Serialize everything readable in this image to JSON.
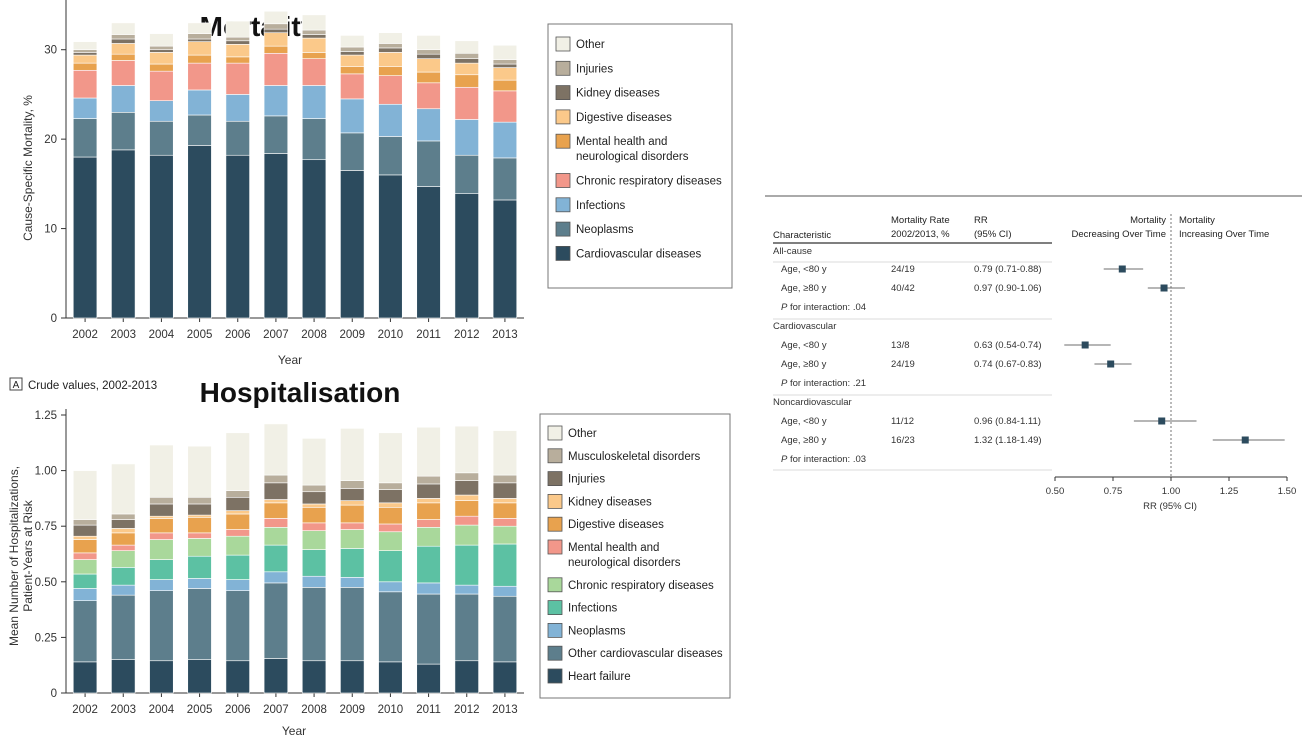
{
  "chart_data": [
    {
      "type": "bar",
      "stacked": true,
      "title": "Mortality",
      "xlabel": "Year",
      "ylabel": "Cause-Specific Mortality, %",
      "ylim": [
        0,
        35
      ],
      "yticks": [
        0,
        10,
        20,
        30
      ],
      "categories": [
        "2002",
        "2003",
        "2004",
        "2005",
        "2006",
        "2007",
        "2008",
        "2009",
        "2010",
        "2011",
        "2012",
        "2013"
      ],
      "legend_position": "right",
      "series": [
        {
          "name": "Cardiovascular diseases",
          "color": "#2c4b5e",
          "values": [
            18.0,
            18.8,
            18.2,
            19.3,
            18.2,
            18.4,
            17.7,
            16.5,
            16.0,
            14.7,
            13.9,
            13.2
          ]
        },
        {
          "name": "Neoplasms",
          "color": "#5d7e8c",
          "values": [
            4.3,
            4.2,
            3.8,
            3.4,
            3.8,
            4.2,
            4.6,
            4.2,
            4.3,
            5.1,
            4.3,
            4.7
          ]
        },
        {
          "name": "Infections",
          "color": "#82b3d6",
          "values": [
            2.3,
            3.0,
            2.3,
            2.8,
            3.0,
            3.4,
            3.7,
            3.8,
            3.6,
            3.6,
            4.0,
            4.0
          ]
        },
        {
          "name": "Chronic respiratory diseases",
          "color": "#f2978a",
          "values": [
            3.1,
            2.8,
            3.3,
            3.0,
            3.5,
            3.6,
            3.0,
            2.8,
            3.2,
            2.9,
            3.6,
            3.5
          ]
        },
        {
          "name": "Mental health and neurological disorders",
          "color": "#e8a24e",
          "values": [
            0.8,
            0.7,
            0.8,
            0.9,
            0.7,
            0.8,
            0.7,
            0.8,
            1.0,
            1.2,
            1.4,
            1.2
          ]
        },
        {
          "name": "Digestive diseases",
          "color": "#fbc98a",
          "values": [
            0.9,
            1.2,
            1.3,
            1.5,
            1.4,
            1.5,
            1.6,
            1.3,
            1.6,
            1.5,
            1.3,
            1.4
          ]
        },
        {
          "name": "Kidney diseases",
          "color": "#7d7264",
          "values": [
            0.3,
            0.5,
            0.3,
            0.3,
            0.4,
            0.4,
            0.4,
            0.4,
            0.5,
            0.5,
            0.5,
            0.4
          ]
        },
        {
          "name": "Injuries",
          "color": "#b8ae9c",
          "values": [
            0.3,
            0.5,
            0.4,
            0.6,
            0.4,
            0.6,
            0.5,
            0.5,
            0.5,
            0.5,
            0.6,
            0.5
          ]
        },
        {
          "name": "Other",
          "color": "#f1f0e6",
          "values": [
            0.9,
            1.3,
            1.4,
            1.2,
            1.8,
            1.4,
            1.7,
            1.3,
            1.2,
            1.6,
            1.4,
            1.6
          ]
        }
      ]
    },
    {
      "type": "bar",
      "stacked": true,
      "title": "Hospitalisation",
      "panel_label": "A",
      "panel_caption": "Crude values, 2002-2013",
      "xlabel": "Year",
      "ylabel_lines": [
        "Mean Number of Hospitalizations,",
        "Patient-Years at Risk"
      ],
      "ylim": [
        0,
        1.25
      ],
      "yticks": [
        0,
        0.25,
        0.5,
        0.75,
        1.0,
        1.25
      ],
      "ytick_labels": [
        "0",
        "0.25",
        "0.50",
        "0.75",
        "1.00",
        "1.25"
      ],
      "categories": [
        "2002",
        "2003",
        "2004",
        "2005",
        "2006",
        "2007",
        "2008",
        "2009",
        "2010",
        "2011",
        "2012",
        "2013"
      ],
      "legend_position": "right",
      "series": [
        {
          "name": "Heart failure",
          "color": "#2c4b5e",
          "values": [
            0.14,
            0.15,
            0.145,
            0.15,
            0.145,
            0.155,
            0.145,
            0.145,
            0.14,
            0.13,
            0.145,
            0.14
          ]
        },
        {
          "name": "Other cardiovascular diseases",
          "color": "#5d7e8c",
          "values": [
            0.275,
            0.29,
            0.315,
            0.32,
            0.315,
            0.34,
            0.33,
            0.33,
            0.315,
            0.315,
            0.3,
            0.295
          ]
        },
        {
          "name": "Neoplasms",
          "color": "#82b3d6",
          "values": [
            0.055,
            0.045,
            0.05,
            0.045,
            0.05,
            0.05,
            0.05,
            0.045,
            0.045,
            0.05,
            0.04,
            0.045
          ]
        },
        {
          "name": "Infections",
          "color": "#5cc1a3",
          "values": [
            0.065,
            0.08,
            0.09,
            0.1,
            0.11,
            0.12,
            0.12,
            0.13,
            0.14,
            0.165,
            0.18,
            0.19
          ]
        },
        {
          "name": "Chronic respiratory diseases",
          "color": "#a9d89b",
          "values": [
            0.065,
            0.075,
            0.09,
            0.08,
            0.085,
            0.08,
            0.085,
            0.085,
            0.085,
            0.085,
            0.09,
            0.08
          ]
        },
        {
          "name": "Mental health and neurological disorders",
          "color": "#f2978a",
          "values": [
            0.03,
            0.025,
            0.03,
            0.025,
            0.03,
            0.04,
            0.035,
            0.03,
            0.035,
            0.035,
            0.04,
            0.035
          ]
        },
        {
          "name": "Digestive diseases",
          "color": "#e8a24e",
          "values": [
            0.06,
            0.055,
            0.065,
            0.07,
            0.07,
            0.07,
            0.07,
            0.08,
            0.075,
            0.075,
            0.07,
            0.07
          ]
        },
        {
          "name": "Kidney diseases",
          "color": "#fbc98a",
          "values": [
            0.015,
            0.02,
            0.01,
            0.01,
            0.015,
            0.015,
            0.015,
            0.02,
            0.02,
            0.02,
            0.025,
            0.02
          ]
        },
        {
          "name": "Injuries",
          "color": "#7d7264",
          "values": [
            0.05,
            0.04,
            0.055,
            0.05,
            0.06,
            0.075,
            0.055,
            0.055,
            0.06,
            0.065,
            0.065,
            0.07
          ]
        },
        {
          "name": "Musculoskeletal disorders",
          "color": "#b8ae9c",
          "values": [
            0.025,
            0.025,
            0.03,
            0.03,
            0.03,
            0.035,
            0.03,
            0.035,
            0.03,
            0.035,
            0.035,
            0.035
          ]
        },
        {
          "name": "Other",
          "color": "#f1f0e6",
          "values": [
            0.22,
            0.225,
            0.235,
            0.23,
            0.26,
            0.23,
            0.21,
            0.235,
            0.225,
            0.22,
            0.21,
            0.2
          ]
        }
      ]
    },
    {
      "type": "forest",
      "headers": {
        "characteristic": "Characteristic",
        "rate_line1": "Mortality Rate",
        "rate_line2": "2002/2013, %",
        "rr_line1": "RR",
        "rr_line2": "(95% CI)",
        "left_line1": "Mortality",
        "left_line2": "Decreasing Over Time",
        "right_line1": "Mortality",
        "right_line2": "Increasing Over Time"
      },
      "xlabel": "RR (95% CI)",
      "xlim": [
        0.5,
        1.5
      ],
      "xticks": [
        0.5,
        0.75,
        1.0,
        1.25,
        1.5
      ],
      "xtick_labels": [
        "0.50",
        "0.75",
        "1.00",
        "1.25",
        "1.50"
      ],
      "reference_line": 1.0,
      "rows": [
        {
          "kind": "group",
          "label": "All-cause"
        },
        {
          "kind": "data",
          "label": "Age, <80 y",
          "rate": "24/19",
          "rr_text": "0.79 (0.71-0.88)",
          "rr": 0.79,
          "lo": 0.71,
          "hi": 0.88
        },
        {
          "kind": "data",
          "label": "Age, ≥80 y",
          "rate": "40/42",
          "rr_text": "0.97 (0.90-1.06)",
          "rr": 0.97,
          "lo": 0.9,
          "hi": 1.06
        },
        {
          "kind": "note",
          "p_label": "P",
          "label": " for interaction: .04"
        },
        {
          "kind": "group",
          "label": "Cardiovascular"
        },
        {
          "kind": "data",
          "label": "Age, <80 y",
          "rate": "13/8",
          "rr_text": "0.63 (0.54-0.74)",
          "rr": 0.63,
          "lo": 0.54,
          "hi": 0.74
        },
        {
          "kind": "data",
          "label": "Age, ≥80 y",
          "rate": "24/19",
          "rr_text": "0.74 (0.67-0.83)",
          "rr": 0.74,
          "lo": 0.67,
          "hi": 0.83
        },
        {
          "kind": "note",
          "p_label": "P",
          "label": " for interaction: .21"
        },
        {
          "kind": "group",
          "label": "Noncardiovascular"
        },
        {
          "kind": "data",
          "label": "Age, <80 y",
          "rate": "11/12",
          "rr_text": "0.96 (0.84-1.11)",
          "rr": 0.96,
          "lo": 0.84,
          "hi": 1.11
        },
        {
          "kind": "data",
          "label": "Age, ≥80 y",
          "rate": "16/23",
          "rr_text": "1.32 (1.18-1.49)",
          "rr": 1.32,
          "lo": 1.18,
          "hi": 1.49
        },
        {
          "kind": "note",
          "p_label": "P",
          "label": " for interaction: .03"
        }
      ]
    }
  ]
}
